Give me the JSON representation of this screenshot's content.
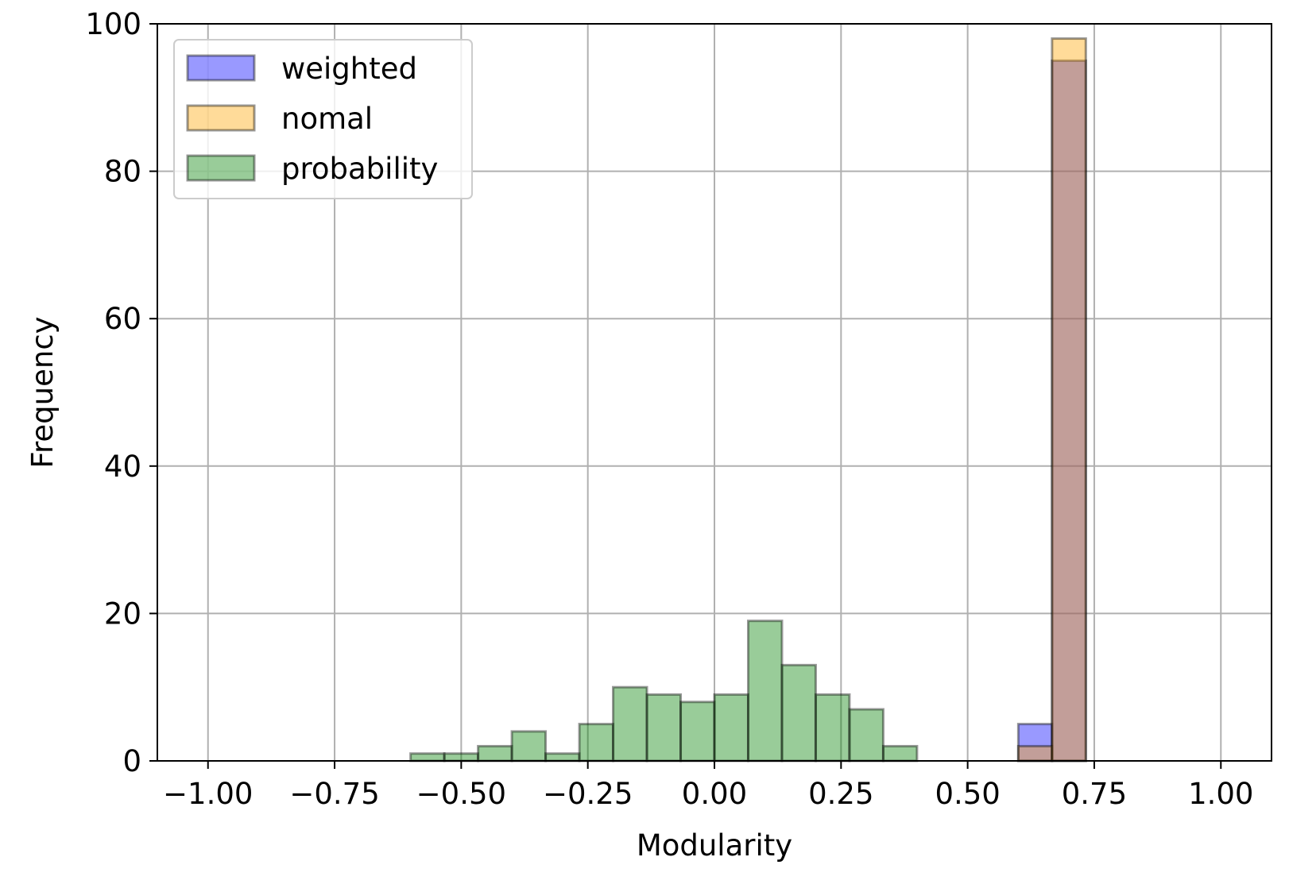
{
  "chart_data": {
    "type": "bar",
    "subtype": "overlapping-histogram",
    "title": "",
    "xlabel": "Modularity",
    "ylabel": "Frequency",
    "xlim": [
      -1.1,
      1.1
    ],
    "ylim": [
      0,
      100
    ],
    "xticks": [
      -1.0,
      -0.75,
      -0.5,
      -0.25,
      0.0,
      0.25,
      0.5,
      0.75,
      1.0
    ],
    "xtick_labels": [
      "−1.00",
      "−0.75",
      "−0.50",
      "−0.25",
      "0.00",
      "0.25",
      "0.50",
      "0.75",
      "1.00"
    ],
    "yticks": [
      0,
      20,
      40,
      60,
      80,
      100
    ],
    "ytick_labels": [
      "0",
      "20",
      "40",
      "60",
      "80",
      "100"
    ],
    "grid": true,
    "legend_position": "top-left",
    "bin_range": [
      -1.0,
      1.0
    ],
    "bin_count": 30,
    "series": [
      {
        "name": "weighted",
        "color": "#0000ff",
        "alpha": 0.4,
        "values": [
          0,
          0,
          0,
          0,
          0,
          0,
          0,
          0,
          0,
          0,
          0,
          0,
          0,
          0,
          0,
          0,
          0,
          0,
          0,
          0,
          0,
          0,
          0,
          0,
          5,
          95,
          0,
          0,
          0,
          0
        ]
      },
      {
        "name": "nomal",
        "color": "#ffa500",
        "alpha": 0.4,
        "values": [
          0,
          0,
          0,
          0,
          0,
          0,
          0,
          0,
          0,
          0,
          0,
          0,
          0,
          0,
          0,
          0,
          0,
          0,
          0,
          0,
          0,
          0,
          0,
          0,
          2,
          98,
          0,
          0,
          0,
          0
        ]
      },
      {
        "name": "probability",
        "color": "#008000",
        "alpha": 0.4,
        "values": [
          0,
          0,
          0,
          0,
          0,
          0,
          1,
          1,
          2,
          4,
          1,
          5,
          10,
          9,
          8,
          9,
          19,
          13,
          9,
          7,
          2,
          0,
          0,
          0,
          0,
          0,
          0,
          0,
          0,
          0
        ]
      }
    ]
  }
}
